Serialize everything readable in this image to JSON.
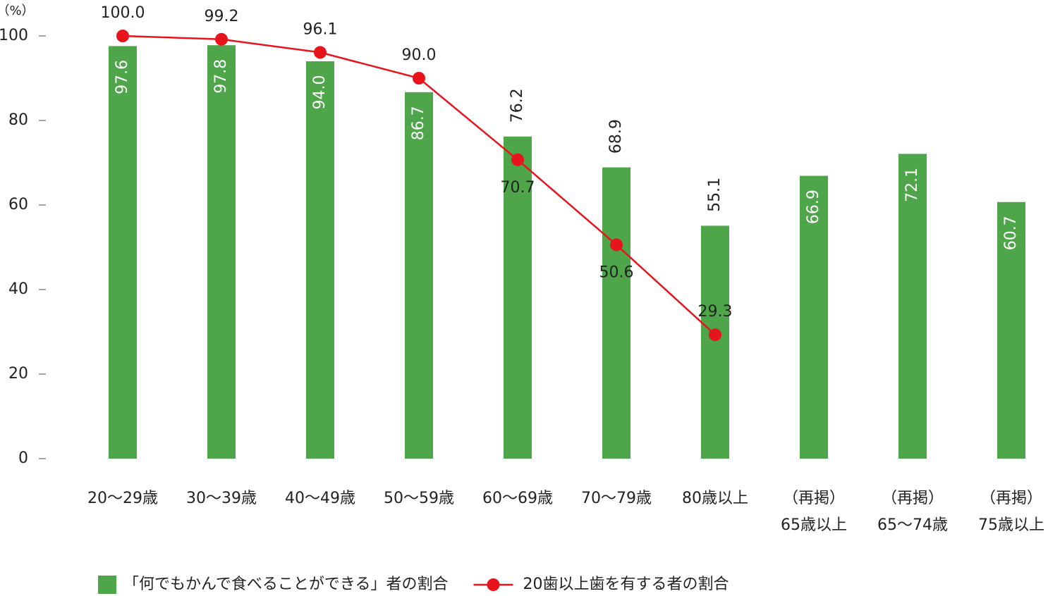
{
  "chart_data": {
    "type": "bar-line",
    "y_label": "（%）",
    "categories": [
      "20～29歳",
      "30～39歳",
      "40～49歳",
      "50～59歳",
      "60～69歳",
      "70～79歳",
      "80歳以上",
      "（再掲）\n65歳以上",
      "（再掲）\n65～74歳",
      "（再掲）\n75歳以上"
    ],
    "series": [
      {
        "name": "「何でもかんで食べることができる」者の割合",
        "type": "bar",
        "color": "#4ea54a",
        "values": [
          97.6,
          97.8,
          94.0,
          86.7,
          76.2,
          68.9,
          55.1,
          66.9,
          72.1,
          60.7
        ],
        "value_labels": [
          "97.6",
          "97.8",
          "94.0",
          "86.7",
          "76.2",
          "68.9",
          "55.1",
          "66.9",
          "72.1",
          "60.7"
        ]
      },
      {
        "name": "20歯以上歯を有する者の割合",
        "type": "line",
        "color": "#e8141c",
        "values": [
          100.0,
          99.2,
          96.1,
          90.0,
          70.7,
          50.6,
          29.3,
          null,
          null,
          null
        ],
        "value_labels": [
          "100.0",
          "99.2",
          "96.1",
          "90.0",
          "70.7",
          "50.6",
          "29.3",
          null,
          null,
          null
        ]
      }
    ],
    "ylim": [
      0,
      100
    ],
    "yticks": [
      0,
      20,
      40,
      60,
      80,
      100
    ],
    "grid": false,
    "legend": "bottom"
  }
}
